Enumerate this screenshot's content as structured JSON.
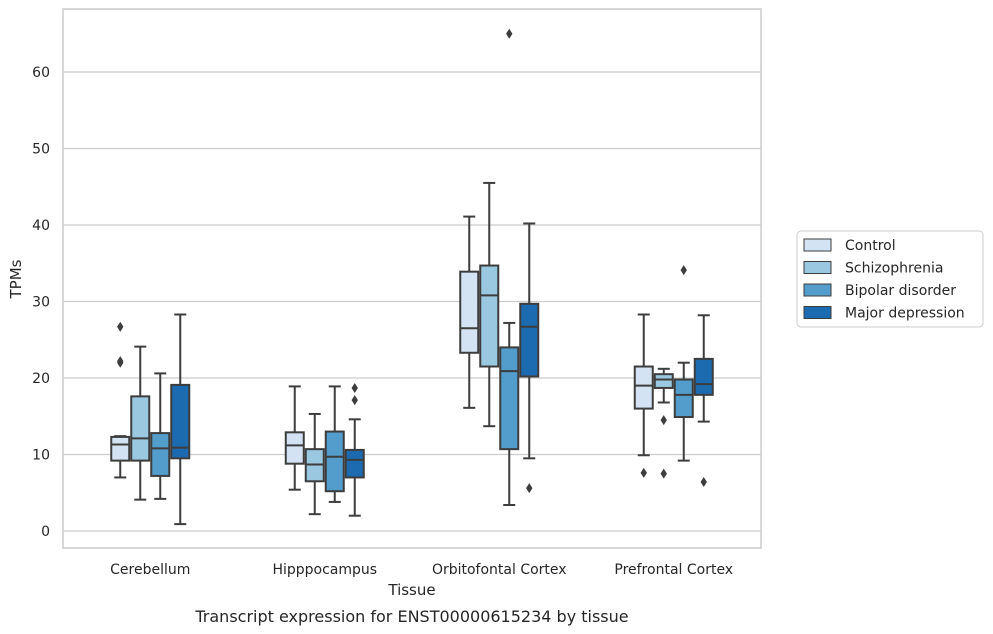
{
  "chart_data": {
    "type": "boxplot",
    "caption": "Transcript expression for ENST00000615234 by tissue",
    "xlabel": "Tissue",
    "ylabel": "TPMs",
    "ylim": [
      -2,
      68
    ],
    "yticks": [
      0,
      10,
      20,
      30,
      40,
      50,
      60
    ],
    "grid": true,
    "legend_position": "right",
    "categories": [
      "Cerebellum",
      "Hipppocampus",
      "Orbitofontal Cortex",
      "Prefrontal Cortex"
    ],
    "series": [
      {
        "name": "Control",
        "color": "#d3e3f3",
        "boxes": [
          {
            "whislo": 7.0,
            "q1": 9.2,
            "med": 11.3,
            "q3": 12.3,
            "whishi": 12.4,
            "fliers": [
              22.0,
              22.2,
              26.7
            ]
          },
          {
            "whislo": 5.4,
            "q1": 8.8,
            "med": 11.2,
            "q3": 12.9,
            "whishi": 18.9,
            "fliers": []
          },
          {
            "whislo": 16.1,
            "q1": 23.3,
            "med": 26.5,
            "q3": 33.9,
            "whishi": 41.1,
            "fliers": []
          },
          {
            "whislo": 9.9,
            "q1": 16.0,
            "med": 19.0,
            "q3": 21.5,
            "whishi": 28.3,
            "fliers": [
              7.6
            ]
          }
        ]
      },
      {
        "name": "Schizophrenia",
        "color": "#9ac8e0",
        "boxes": [
          {
            "whislo": 4.1,
            "q1": 9.2,
            "med": 12.1,
            "q3": 17.6,
            "whishi": 24.1,
            "fliers": []
          },
          {
            "whislo": 2.2,
            "q1": 6.5,
            "med": 8.7,
            "q3": 10.7,
            "whishi": 15.3,
            "fliers": []
          },
          {
            "whislo": 13.7,
            "q1": 21.5,
            "med": 30.8,
            "q3": 34.7,
            "whishi": 45.5,
            "fliers": []
          },
          {
            "whislo": 16.8,
            "q1": 18.7,
            "med": 19.8,
            "q3": 20.5,
            "whishi": 21.2,
            "fliers": [
              14.5,
              7.5
            ]
          }
        ]
      },
      {
        "name": "Bipolar disorder",
        "color": "#529dcc",
        "boxes": [
          {
            "whislo": 4.2,
            "q1": 7.2,
            "med": 10.8,
            "q3": 12.8,
            "whishi": 20.6,
            "fliers": []
          },
          {
            "whislo": 3.8,
            "q1": 5.2,
            "med": 9.7,
            "q3": 13.0,
            "whishi": 18.9,
            "fliers": []
          },
          {
            "whislo": 3.4,
            "q1": 10.7,
            "med": 20.9,
            "q3": 24.0,
            "whishi": 27.2,
            "fliers": [
              65.0
            ]
          },
          {
            "whislo": 9.2,
            "q1": 14.9,
            "med": 17.8,
            "q3": 19.8,
            "whishi": 22.0,
            "fliers": [
              34.1
            ]
          }
        ]
      },
      {
        "name": "Major depression",
        "color": "#1c6aaf",
        "boxes": [
          {
            "whislo": 0.9,
            "q1": 9.5,
            "med": 10.9,
            "q3": 19.1,
            "whishi": 28.3,
            "fliers": []
          },
          {
            "whislo": 2.0,
            "q1": 7.0,
            "med": 9.3,
            "q3": 10.6,
            "whishi": 14.6,
            "fliers": [
              17.1,
              18.7
            ]
          },
          {
            "whislo": 9.5,
            "q1": 20.2,
            "med": 26.7,
            "q3": 29.7,
            "whishi": 40.2,
            "fliers": [
              5.6
            ]
          },
          {
            "whislo": 14.3,
            "q1": 17.8,
            "med": 19.2,
            "q3": 22.5,
            "whishi": 28.2,
            "fliers": [
              6.4
            ]
          }
        ]
      }
    ]
  },
  "style": {
    "edge_color": "#3d3d3d",
    "grid_color": "#cccccc",
    "frame_color": "#cccccc",
    "text_color": "#262626"
  }
}
